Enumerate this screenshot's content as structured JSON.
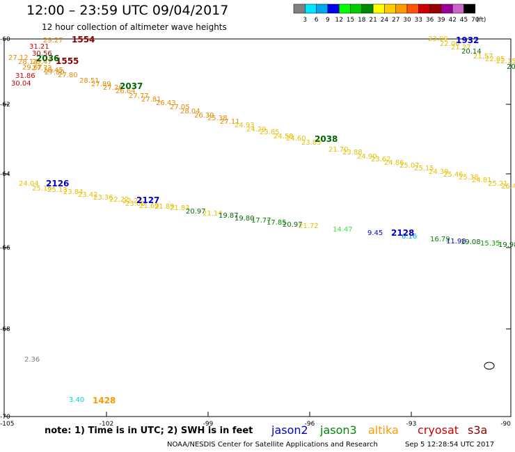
{
  "title": "12:00 – 23:59 UTC 09/04/2017",
  "subtitle": "12 hour collection of altimeter wave heights",
  "colorbar": {
    "unit": "(ft)",
    "labels": [
      "3",
      "6",
      "9",
      "12",
      "15",
      "18",
      "21",
      "24",
      "27",
      "30",
      "33",
      "36",
      "39",
      "42",
      "45",
      "70"
    ],
    "colors": [
      "#808080",
      "#00e5ff",
      "#00a8ee",
      "#0000ee",
      "#00ff00",
      "#00cc00",
      "#008800",
      "#ffff00",
      "#ffcc00",
      "#ff9900",
      "#ff5500",
      "#cc0000",
      "#990000",
      "#990099",
      "#cc66cc",
      "#000000"
    ]
  },
  "axes": {
    "lon_ticks": [
      "-105",
      "-102",
      "-99",
      "-96",
      "-93",
      "-90"
    ],
    "lat_ticks": [
      "-60",
      "-62",
      "-64",
      "-66",
      "-68",
      "-70"
    ]
  },
  "time_labels": [
    {
      "text": "1554",
      "color": "#880000"
    },
    {
      "text": "1555",
      "color": "#880000"
    },
    {
      "text": "2036",
      "color": "#006600"
    },
    {
      "text": "2037",
      "color": "#006600"
    },
    {
      "text": "2038",
      "color": "#006600"
    },
    {
      "text": "1932",
      "color": "#0000cc"
    },
    {
      "text": "2126",
      "color": "#0000cc"
    },
    {
      "text": "2127",
      "color": "#0000cc"
    },
    {
      "text": "2128",
      "color": "#0000cc"
    },
    {
      "text": "1428",
      "color": "#ff9900"
    }
  ],
  "wave_heights": [
    {
      "v": "29.27",
      "c": "#e68a00"
    },
    {
      "v": "31.21",
      "c": "#cc0000"
    },
    {
      "v": "30.56",
      "c": "#cc0000"
    },
    {
      "v": "27.12",
      "c": "#e68a00"
    },
    {
      "v": "28.14",
      "c": "#e68a00"
    },
    {
      "v": "29.47",
      "c": "#e68a00"
    },
    {
      "v": "29.67",
      "c": "#e68a00"
    },
    {
      "v": "27.73",
      "c": "#e68a00"
    },
    {
      "v": "28.45",
      "c": "#e68a00"
    },
    {
      "v": "31.86",
      "c": "#cc0000"
    },
    {
      "v": "30.04",
      "c": "#cc0000"
    },
    {
      "v": "27.80",
      "c": "#e68a00"
    },
    {
      "v": "27.80",
      "c": "#e68a00"
    },
    {
      "v": "28.51",
      "c": "#e68a00"
    },
    {
      "v": "27.89",
      "c": "#e68a00"
    },
    {
      "v": "27.26",
      "c": "#e68a00"
    },
    {
      "v": "26.64",
      "c": "#e68a00"
    },
    {
      "v": "27.77",
      "c": "#e68a00"
    },
    {
      "v": "27.81",
      "c": "#e68a00"
    },
    {
      "v": "26.43",
      "c": "#e68a00"
    },
    {
      "v": "27.05",
      "c": "#e68a00"
    },
    {
      "v": "28.04",
      "c": "#e68a00"
    },
    {
      "v": "26.39",
      "c": "#e68a00"
    },
    {
      "v": "25.38",
      "c": "#e68a00"
    },
    {
      "v": "27.11",
      "c": "#e68a00"
    },
    {
      "v": "24.93",
      "c": "#e6c000"
    },
    {
      "v": "24.29",
      "c": "#e6c000"
    },
    {
      "v": "23.85",
      "c": "#e6c000"
    },
    {
      "v": "24.58",
      "c": "#e6c000"
    },
    {
      "v": "24.60",
      "c": "#e6c000"
    },
    {
      "v": "23.83",
      "c": "#e6c000"
    },
    {
      "v": "21.70",
      "c": "#e6c000"
    },
    {
      "v": "23.88",
      "c": "#e6c000"
    },
    {
      "v": "24.90",
      "c": "#e6c000"
    },
    {
      "v": "23.62",
      "c": "#e6c000"
    },
    {
      "v": "24.86",
      "c": "#e6c000"
    },
    {
      "v": "25.07",
      "c": "#e6c000"
    },
    {
      "v": "25.15",
      "c": "#e6c000"
    },
    {
      "v": "24.39",
      "c": "#e6c000"
    },
    {
      "v": "25.46",
      "c": "#e6c000"
    },
    {
      "v": "25.38",
      "c": "#e6c000"
    },
    {
      "v": "24.81",
      "c": "#e6c000"
    },
    {
      "v": "25.21",
      "c": "#e6c000"
    },
    {
      "v": "26.4",
      "c": "#e6c000"
    },
    {
      "v": "23.09",
      "c": "#e6c000"
    },
    {
      "v": "22.00",
      "c": "#e6c000"
    },
    {
      "v": "21.27",
      "c": "#e6c000"
    },
    {
      "v": "20.14",
      "c": "#006600"
    },
    {
      "v": "21.57",
      "c": "#e6c000"
    },
    {
      "v": "22.05",
      "c": "#e6c000"
    },
    {
      "v": "22.15",
      "c": "#e6c000"
    },
    {
      "v": "20",
      "c": "#006600"
    },
    {
      "v": "24.04",
      "c": "#e6c000"
    },
    {
      "v": "25.16",
      "c": "#e6c000"
    },
    {
      "v": "25.13",
      "c": "#e6c000"
    },
    {
      "v": "23.84",
      "c": "#e6c000"
    },
    {
      "v": "23.42",
      "c": "#e6c000"
    },
    {
      "v": "23.36",
      "c": "#e6c000"
    },
    {
      "v": "22.22",
      "c": "#e6c000"
    },
    {
      "v": "22.23",
      "c": "#e6c000"
    },
    {
      "v": "23.00",
      "c": "#e6c000"
    },
    {
      "v": "21.69",
      "c": "#e6c000"
    },
    {
      "v": "21.89",
      "c": "#e6c000"
    },
    {
      "v": "21.83",
      "c": "#e6c000"
    },
    {
      "v": "20.97",
      "c": "#006600"
    },
    {
      "v": "21.14",
      "c": "#e6c000"
    },
    {
      "v": "19.87",
      "c": "#006600"
    },
    {
      "v": "19.80",
      "c": "#006600"
    },
    {
      "v": "17.77",
      "c": "#008800"
    },
    {
      "v": "17.85",
      "c": "#008800"
    },
    {
      "v": "20.97",
      "c": "#006600"
    },
    {
      "v": "21.72",
      "c": "#e6c000"
    },
    {
      "v": "14.47",
      "c": "#44dd44"
    },
    {
      "v": "9.45",
      "c": "#0000cc"
    },
    {
      "v": "6.16",
      "c": "#00a8ee"
    },
    {
      "v": "16.79",
      "c": "#008800"
    },
    {
      "v": "11.98",
      "c": "#0000cc"
    },
    {
      "v": "19.08",
      "c": "#006600"
    },
    {
      "v": "15.35",
      "c": "#00aa00"
    },
    {
      "v": "19.98",
      "c": "#006600"
    },
    {
      "v": "2.36",
      "c": "#808080"
    },
    {
      "v": "3.40",
      "c": "#00ccdd"
    }
  ],
  "note": "note: 1) Time is in UTC; 2) SWH is in feet",
  "satellites": [
    {
      "name": "jason2",
      "color": "#0000cc"
    },
    {
      "name": "jason3",
      "color": "#008800"
    },
    {
      "name": "altika",
      "color": "#ff9900"
    },
    {
      "name": "cryosat",
      "color": "#cc0000"
    },
    {
      "name": "s3a",
      "color": "#880000"
    }
  ],
  "credit": "NOAA/NESDIS Center for Satellite Applications and Research",
  "timestamp": "Sep  5 12:28:54 UTC 2017"
}
